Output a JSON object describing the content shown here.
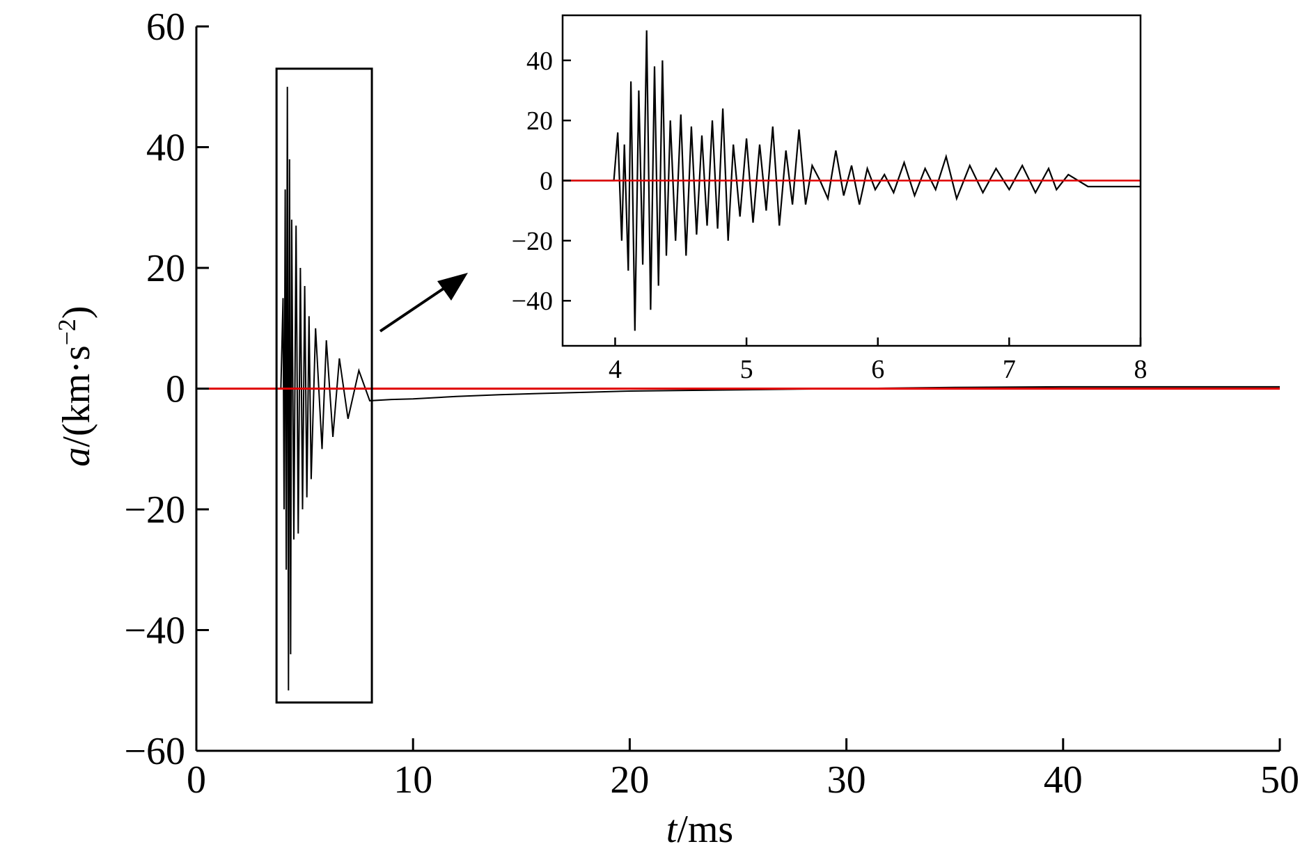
{
  "chart_data": [
    {
      "type": "line",
      "role": "main",
      "xlabel": {
        "var": "t",
        "unit": "/ms"
      },
      "ylabel": {
        "var": "a",
        "unit_pre": "/(km·s",
        "unit_exp": "−2",
        "unit_post": ")"
      },
      "xlim": [
        0,
        50
      ],
      "ylim": [
        -60,
        60
      ],
      "xticks": [
        0,
        10,
        20,
        30,
        40,
        50
      ],
      "yticks": [
        -60,
        -40,
        -20,
        0,
        20,
        40,
        60
      ],
      "xtick_labels": [
        "0",
        "10",
        "20",
        "30",
        "40",
        "50"
      ],
      "ytick_labels": [
        "−60",
        "−40",
        "−20",
        "0",
        "20",
        "40",
        "60"
      ],
      "grid": false,
      "highlight_box": {
        "x": [
          3.7,
          8.1
        ],
        "y": [
          -52,
          53
        ]
      },
      "series": [
        {
          "color": "#000000",
          "x": [
            0,
            3.9,
            4.0,
            4.05,
            4.1,
            4.15,
            4.2,
            4.25,
            4.3,
            4.35,
            4.4,
            4.5,
            4.6,
            4.7,
            4.8,
            4.9,
            5.0,
            5.1,
            5.2,
            5.3,
            5.5,
            5.8,
            6.0,
            6.3,
            6.6,
            7.0,
            7.5,
            8.0,
            9,
            10,
            12,
            14,
            16,
            18,
            20,
            25,
            30,
            35,
            40,
            45,
            50
          ],
          "y": [
            0,
            0,
            15,
            -20,
            33,
            -30,
            50,
            -50,
            38,
            -44,
            28,
            -25,
            27,
            -24,
            20,
            -20,
            17,
            -18,
            12,
            -15,
            10,
            -10,
            8,
            -8,
            5,
            -5,
            3,
            -2,
            -1.8,
            -1.7,
            -1.3,
            -1,
            -0.8,
            -0.6,
            -0.4,
            -0.2,
            0,
            0.2,
            0.3,
            0.3,
            0.3
          ]
        },
        {
          "color": "#e00000",
          "x": [
            0,
            50
          ],
          "y": [
            0,
            0
          ]
        }
      ]
    },
    {
      "type": "line",
      "role": "inset",
      "xlim": [
        3.6,
        8
      ],
      "ylim": [
        -55,
        55
      ],
      "xticks": [
        4,
        5,
        6,
        7,
        8
      ],
      "yticks": [
        -40,
        -20,
        0,
        20,
        40
      ],
      "xtick_labels": [
        "4",
        "5",
        "6",
        "7",
        "8"
      ],
      "ytick_labels": [
        "−40",
        "−20",
        "0",
        "20",
        "40"
      ],
      "grid": false,
      "series": [
        {
          "color": "#000000",
          "x": [
            3.6,
            3.8,
            3.99,
            4.02,
            4.05,
            4.07,
            4.1,
            4.12,
            4.15,
            4.18,
            4.21,
            4.24,
            4.27,
            4.3,
            4.33,
            4.36,
            4.39,
            4.42,
            4.46,
            4.5,
            4.54,
            4.58,
            4.62,
            4.66,
            4.7,
            4.74,
            4.78,
            4.82,
            4.86,
            4.9,
            4.95,
            5.0,
            5.05,
            5.1,
            5.15,
            5.2,
            5.25,
            5.3,
            5.35,
            5.4,
            5.45,
            5.5,
            5.56,
            5.62,
            5.68,
            5.74,
            5.8,
            5.86,
            5.92,
            5.98,
            6.05,
            6.12,
            6.2,
            6.28,
            6.36,
            6.44,
            6.52,
            6.6,
            6.7,
            6.8,
            6.9,
            7.0,
            7.1,
            7.2,
            7.3,
            7.36,
            7.45,
            7.6,
            7.8,
            8.0
          ],
          "y": [
            0,
            0,
            0,
            16,
            -20,
            12,
            -30,
            33,
            -50,
            30,
            -28,
            50,
            -43,
            38,
            -35,
            40,
            -25,
            20,
            -20,
            22,
            -25,
            18,
            -18,
            15,
            -15,
            20,
            -16,
            24,
            -20,
            12,
            -12,
            14,
            -14,
            12,
            -10,
            18,
            -15,
            10,
            -8,
            17,
            -8,
            5,
            0,
            -6,
            10,
            -5,
            5,
            -8,
            4,
            -3,
            2,
            -4,
            6,
            -5,
            4,
            -3,
            8,
            -6,
            5,
            -4,
            4,
            -3,
            5,
            -4,
            4,
            -3,
            2,
            -2,
            -2,
            -2
          ]
        },
        {
          "color": "#e00000",
          "x": [
            3.6,
            8
          ],
          "y": [
            0,
            0
          ]
        }
      ]
    }
  ]
}
